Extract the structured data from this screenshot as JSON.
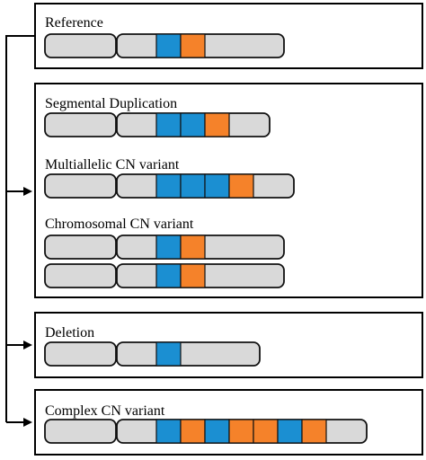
{
  "colors": {
    "panel_border": "#000000",
    "arm_fill": "#d9d9d9",
    "arm_stroke": "#111111",
    "blue_segment": "#1b8fd2",
    "orange_segment": "#f5822a",
    "connector": "#000000"
  },
  "panels": [
    {
      "rows": [
        {
          "label": "Reference",
          "segments": [
            "blue",
            "orange"
          ]
        }
      ]
    },
    {
      "rows": [
        {
          "label": "Segmental Duplication",
          "segments": [
            "blue",
            "blue",
            "orange"
          ]
        },
        {
          "label": "Multiallelic CN variant",
          "segments": [
            "blue",
            "blue",
            "blue",
            "orange"
          ]
        },
        {
          "label": "Chromosomal CN variant",
          "segments": [
            "blue",
            "orange"
          ]
        },
        {
          "label": "",
          "segments": [
            "blue",
            "orange"
          ]
        }
      ]
    },
    {
      "rows": [
        {
          "label": "Deletion",
          "segments": [
            "blue"
          ]
        }
      ]
    },
    {
      "rows": [
        {
          "label": "Complex CN variant",
          "segments": [
            "blue",
            "orange",
            "blue",
            "orange",
            "orange",
            "blue",
            "orange"
          ]
        }
      ]
    }
  ],
  "connector_icons": [
    "arrow-right-icon",
    "arrow-right-icon",
    "arrow-right-icon"
  ]
}
